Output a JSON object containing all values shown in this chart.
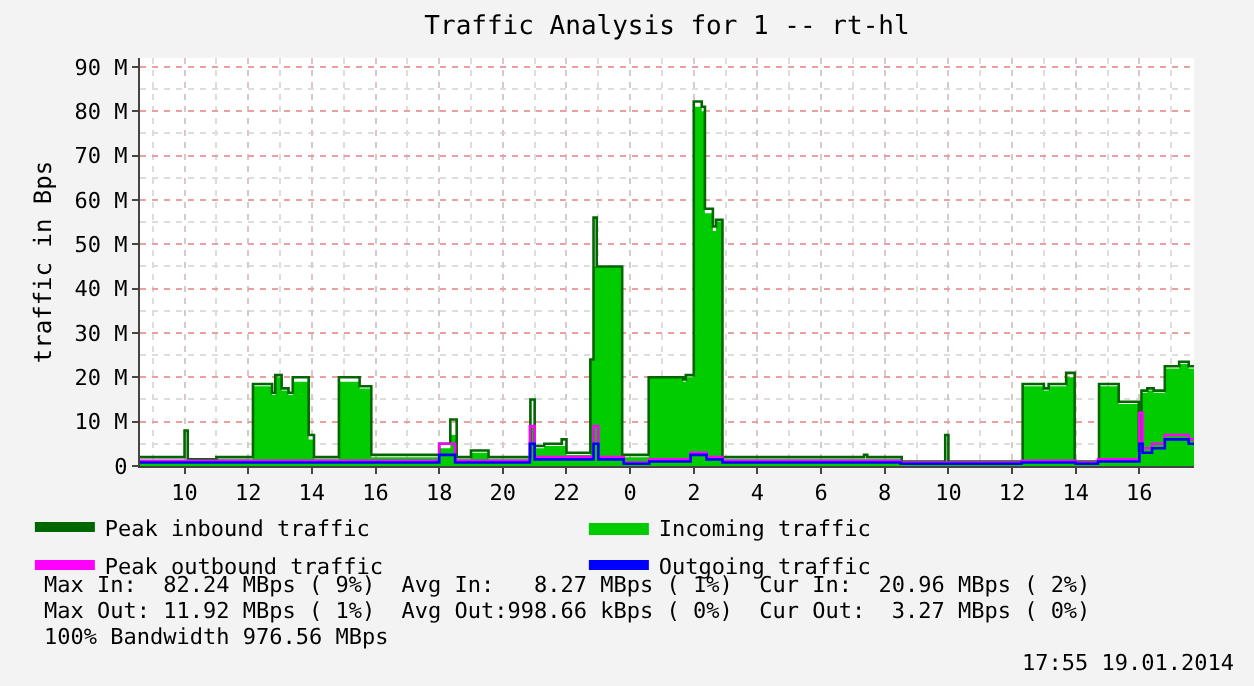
{
  "chart_data": {
    "type": "area",
    "title": "Traffic Analysis for 1 -- rt-hl",
    "ylabel": "traffic in Bps",
    "xlim": [
      "2014-01-18T08:36",
      "2014-01-19T17:43"
    ],
    "xticks": [
      {
        "value": "2014-01-18T10:00",
        "label": "10"
      },
      {
        "value": "2014-01-18T12:00",
        "label": "12"
      },
      {
        "value": "2014-01-18T14:00",
        "label": "14"
      },
      {
        "value": "2014-01-18T16:00",
        "label": "16"
      },
      {
        "value": "2014-01-18T18:00",
        "label": "18"
      },
      {
        "value": "2014-01-18T20:00",
        "label": "20"
      },
      {
        "value": "2014-01-18T22:00",
        "label": "22"
      },
      {
        "value": "2014-01-19T00:00",
        "label": "0"
      },
      {
        "value": "2014-01-19T02:00",
        "label": "2"
      },
      {
        "value": "2014-01-19T04:00",
        "label": "4"
      },
      {
        "value": "2014-01-19T06:00",
        "label": "6"
      },
      {
        "value": "2014-01-19T08:00",
        "label": "8"
      },
      {
        "value": "2014-01-19T10:00",
        "label": "10"
      },
      {
        "value": "2014-01-19T12:00",
        "label": "12"
      },
      {
        "value": "2014-01-19T14:00",
        "label": "14"
      },
      {
        "value": "2014-01-19T16:00",
        "label": "16"
      }
    ],
    "ylim": [
      0,
      92
    ],
    "yticks": [
      0,
      {
        "value": 10,
        "label": "10 M"
      },
      {
        "value": 20,
        "label": "20 M"
      },
      {
        "value": 30,
        "label": "30 M"
      },
      {
        "value": 40,
        "label": "40 M"
      },
      {
        "value": 50,
        "label": "50 M"
      },
      {
        "value": 60,
        "label": "60 M"
      },
      {
        "value": 70,
        "label": "70 M"
      },
      {
        "value": 80,
        "label": "80 M"
      },
      {
        "value": 90,
        "label": "90 M"
      }
    ],
    "grid": true,
    "legend": "bottom left",
    "series": [
      {
        "name": "Peak inbound traffic",
        "type": "step",
        "color": "#006600",
        "x": [
          "2014-01-18T08:36",
          "2014-01-18T10:00",
          "2014-01-18T10:06",
          "2014-01-18T11:00",
          "2014-01-18T12:09",
          "2014-01-18T12:45",
          "2014-01-18T12:51",
          "2014-01-18T13:03",
          "2014-01-18T13:16",
          "2014-01-18T13:24",
          "2014-01-18T13:54",
          "2014-01-18T14:04",
          "2014-01-18T14:51",
          "2014-01-18T15:30",
          "2014-01-18T15:52",
          "2014-01-18T18:00",
          "2014-01-18T18:21",
          "2014-01-18T18:33",
          "2014-01-18T19:00",
          "2014-01-18T19:33",
          "2014-01-18T20:52",
          "2014-01-18T21:00",
          "2014-01-18T21:18",
          "2014-01-18T21:51",
          "2014-01-18T22:00",
          "2014-01-18T22:45",
          "2014-01-18T22:51",
          "2014-01-18T22:57",
          "2014-01-18T23:45",
          "2014-01-19T00:35",
          "2014-01-19T01:40",
          "2014-01-19T01:45",
          "2014-01-19T02:00",
          "2014-01-19T02:15",
          "2014-01-19T02:21",
          "2014-01-19T02:36",
          "2014-01-19T02:42",
          "2014-01-19T02:54",
          "2014-01-19T07:21",
          "2014-01-19T07:27",
          "2014-01-19T08:32",
          "2014-01-19T09:54",
          "2014-01-19T10:00",
          "2014-01-19T12:20",
          "2014-01-19T13:00",
          "2014-01-19T13:09",
          "2014-01-19T13:42",
          "2014-01-19T13:58",
          "2014-01-19T14:44",
          "2014-01-19T15:21",
          "2014-01-19T15:59",
          "2014-01-19T16:04",
          "2014-01-19T16:15",
          "2014-01-19T16:27",
          "2014-01-19T16:48",
          "2014-01-19T17:15",
          "2014-01-19T17:33",
          "2014-01-19T17:43"
        ],
        "values": [
          2,
          8,
          1.5,
          2,
          18.5,
          16.5,
          20.5,
          17.5,
          16.5,
          20,
          7,
          2,
          20,
          18,
          2.5,
          5,
          10.5,
          2,
          3.5,
          2,
          15,
          4.5,
          5,
          6,
          3,
          24,
          56,
          45,
          2.5,
          20,
          19.5,
          20.5,
          82.2,
          81,
          58,
          54,
          55.5,
          2,
          2.5,
          2,
          1,
          7,
          1,
          18.5,
          17.5,
          18.5,
          21,
          1,
          18.5,
          14.5,
          3.5,
          17,
          17.5,
          17,
          22.5,
          23.5,
          22.5,
          22.5
        ]
      },
      {
        "name": "Incoming traffic",
        "color": "#00cc00",
        "x": [
          "2014-01-18T08:36",
          "2014-01-18T10:00",
          "2014-01-18T10:06",
          "2014-01-18T11:00",
          "2014-01-18T12:09",
          "2014-01-18T12:45",
          "2014-01-18T12:51",
          "2014-01-18T13:03",
          "2014-01-18T13:16",
          "2014-01-18T13:24",
          "2014-01-18T13:54",
          "2014-01-18T14:04",
          "2014-01-18T14:51",
          "2014-01-18T15:30",
          "2014-01-18T15:52",
          "2014-01-18T18:00",
          "2014-01-18T18:21",
          "2014-01-18T18:33",
          "2014-01-18T19:00",
          "2014-01-18T19:33",
          "2014-01-18T20:52",
          "2014-01-18T21:00",
          "2014-01-18T21:18",
          "2014-01-18T21:51",
          "2014-01-18T22:00",
          "2014-01-18T22:45",
          "2014-01-18T22:51",
          "2014-01-18T23:45",
          "2014-01-19T00:35",
          "2014-01-19T01:40",
          "2014-01-19T01:45",
          "2014-01-19T02:00",
          "2014-01-19T02:15",
          "2014-01-19T02:21",
          "2014-01-19T02:36",
          "2014-01-19T02:42",
          "2014-01-19T02:54",
          "2014-01-19T07:21",
          "2014-01-19T07:27",
          "2014-01-19T08:32",
          "2014-01-19T12:20",
          "2014-01-19T13:00",
          "2014-01-19T13:09",
          "2014-01-19T13:42",
          "2014-01-19T13:58",
          "2014-01-19T14:44",
          "2014-01-19T15:21",
          "2014-01-19T15:59",
          "2014-01-19T16:04",
          "2014-01-19T16:15",
          "2014-01-19T16:27",
          "2014-01-19T16:48",
          "2014-01-19T17:15",
          "2014-01-19T17:33",
          "2014-01-19T17:43"
        ],
        "values": [
          1,
          1,
          1,
          1.5,
          18,
          16,
          20,
          17,
          16,
          19,
          6,
          1.5,
          19,
          17.5,
          2,
          4,
          7,
          1.5,
          3,
          1.5,
          9,
          4,
          4.5,
          4.5,
          2.5,
          24,
          45,
          2,
          20,
          19,
          20,
          81,
          80,
          57,
          53,
          55,
          1.5,
          1.5,
          1.5,
          0.5,
          18,
          17,
          18,
          20,
          0.5,
          18,
          14,
          3,
          16.5,
          17,
          16.5,
          22,
          23,
          22,
          22
        ]
      },
      {
        "name": "Peak outbound traffic",
        "type": "step",
        "color": "#ff00ff",
        "x": [
          "2014-01-18T08:36",
          "2014-01-18T18:00",
          "2014-01-18T18:30",
          "2014-01-18T20:51",
          "2014-01-18T21:00",
          "2014-01-18T22:51",
          "2014-01-18T23:00",
          "2014-01-18T23:48",
          "2014-01-19T00:36",
          "2014-01-19T01:54",
          "2014-01-19T02:24",
          "2014-01-19T02:54",
          "2014-01-19T08:30",
          "2014-01-19T12:18",
          "2014-01-19T14:00",
          "2014-01-19T14:42",
          "2014-01-19T16:00",
          "2014-01-19T16:06",
          "2014-01-19T16:24",
          "2014-01-19T16:48",
          "2014-01-19T17:33",
          "2014-01-19T17:43"
        ],
        "values": [
          1.2,
          5,
          1.2,
          9,
          2,
          9,
          2,
          0.8,
          1.5,
          3,
          2,
          1.2,
          0.8,
          1.2,
          0.8,
          1.5,
          12,
          4,
          5,
          7,
          6,
          6
        ]
      },
      {
        "name": "Outgoing traffic",
        "type": "step",
        "color": "#0000ff",
        "x": [
          "2014-01-18T08:36",
          "2014-01-18T18:00",
          "2014-01-18T18:30",
          "2014-01-18T20:51",
          "2014-01-18T21:00",
          "2014-01-18T22:51",
          "2014-01-18T23:00",
          "2014-01-18T23:48",
          "2014-01-19T00:36",
          "2014-01-19T01:54",
          "2014-01-19T02:24",
          "2014-01-19T02:54",
          "2014-01-19T08:30",
          "2014-01-19T12:18",
          "2014-01-19T14:00",
          "2014-01-19T14:42",
          "2014-01-19T16:00",
          "2014-01-19T16:06",
          "2014-01-19T16:24",
          "2014-01-19T16:48",
          "2014-01-19T17:33",
          "2014-01-19T17:43"
        ],
        "values": [
          0.8,
          2.5,
          0.8,
          5,
          1.5,
          5,
          1.5,
          0.5,
          1,
          2.5,
          1.5,
          0.8,
          0.5,
          0.8,
          0.5,
          1,
          5,
          3,
          4,
          6,
          5,
          5
        ]
      }
    ],
    "annotations": [
      "Max In:  82.24 MBps ( 9%)  Avg In:   8.27 MBps ( 1%)  Cur In:  20.96 MBps ( 2%)",
      "Max Out: 11.92 MBps ( 1%)  Avg Out:998.66 kBps ( 0%)  Cur Out:  3.27 MBps ( 0%)",
      "100% Bandwidth 976.56 MBps",
      "17:55 19.01.2014"
    ]
  }
}
